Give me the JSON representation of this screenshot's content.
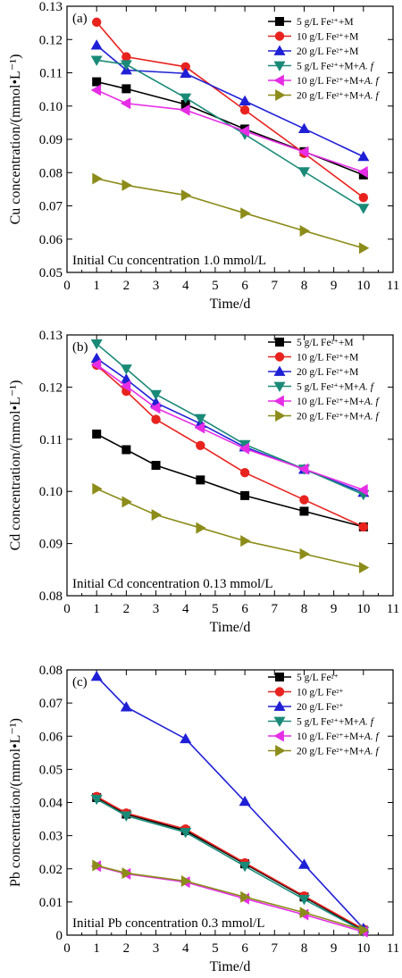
{
  "colors": {
    "black": "#000000",
    "red": "#e8231e",
    "blue": "#1f1fd6",
    "teal": "#1a8a78",
    "magenta": "#e62de6",
    "olive": "#8c8c1a"
  },
  "chart_data": [
    {
      "type": "line",
      "panel": "(a)",
      "xlabel": "Time/d",
      "ylabel": "Cu concentration/(mmol•L⁻¹)",
      "annotation": "Initial Cu concentration 1.0 mmol/L",
      "xlim": [
        0,
        11
      ],
      "ylim": [
        0.05,
        0.13
      ],
      "xticks": [
        0,
        1,
        2,
        3,
        4,
        5,
        6,
        7,
        8,
        9,
        10,
        11
      ],
      "yticks": [
        0.05,
        0.06,
        0.07,
        0.08,
        0.09,
        0.1,
        0.11,
        0.12,
        0.13
      ],
      "ytick_labels": [
        "0.05",
        "0.06",
        "0.07",
        "0.08",
        "0.09",
        "0.10",
        "0.11",
        "0.12",
        "0.13"
      ],
      "legend": "top-right",
      "series": [
        {
          "name": "5 g/L Fe²⁺+M",
          "color": "black",
          "marker": "square",
          "x": [
            1,
            2,
            4,
            6,
            8,
            10
          ],
          "values": [
            0.1073,
            0.1052,
            0.1005,
            0.0931,
            0.0863,
            0.0793
          ]
        },
        {
          "name": "10 g/L Fe²⁺+M",
          "color": "red",
          "marker": "circle",
          "x": [
            1,
            2,
            4,
            6,
            8,
            10
          ],
          "values": [
            0.1252,
            0.1148,
            0.1118,
            0.0988,
            0.0858,
            0.0725
          ]
        },
        {
          "name": "20 g/L Fe²⁺+M",
          "color": "blue",
          "marker": "triangle-up",
          "x": [
            1,
            2,
            4,
            6,
            8,
            10
          ],
          "values": [
            0.1183,
            0.1108,
            0.1098,
            0.1015,
            0.0932,
            0.0848
          ]
        },
        {
          "name": "5 g/L Fe²⁺+M+A. f",
          "color": "teal",
          "marker": "triangle-down",
          "x": [
            1,
            2,
            4,
            6,
            8,
            10
          ],
          "values": [
            0.1138,
            0.1125,
            0.1025,
            0.0915,
            0.0803,
            0.0693
          ]
        },
        {
          "name": "10 g/L Fe²⁺+M+A. f",
          "color": "magenta",
          "marker": "triangle-left",
          "x": [
            1,
            2,
            4,
            6,
            8,
            10
          ],
          "values": [
            0.1048,
            0.1008,
            0.0988,
            0.0925,
            0.0862,
            0.0802
          ]
        },
        {
          "name": "20 g/L Fe²⁺+M+A. f",
          "color": "olive",
          "marker": "triangle-right",
          "x": [
            1,
            2,
            4,
            6,
            8,
            10
          ],
          "values": [
            0.0782,
            0.0762,
            0.0732,
            0.0678,
            0.0625,
            0.0573
          ]
        }
      ]
    },
    {
      "type": "line",
      "panel": "(b)",
      "xlabel": "Time/d",
      "ylabel": "Cd concentration/(mmol•L⁻¹)",
      "annotation": "Initial Cd concentration 0.13 mmol/L",
      "xlim": [
        0,
        11
      ],
      "ylim": [
        0.08,
        0.13
      ],
      "xticks": [
        0,
        1,
        2,
        3,
        4,
        5,
        6,
        7,
        8,
        9,
        10,
        11
      ],
      "yticks": [
        0.08,
        0.09,
        0.1,
        0.11,
        0.12,
        0.13
      ],
      "ytick_labels": [
        "0.08",
        "0.09",
        "0.10",
        "0.11",
        "0.12",
        "0.13"
      ],
      "legend": "top-right",
      "series": [
        {
          "name": "5 g/L Fe²⁺+M",
          "color": "black",
          "marker": "square",
          "x": [
            1,
            2,
            3,
            4.5,
            6,
            8,
            10
          ],
          "values": [
            0.111,
            0.108,
            0.105,
            0.1022,
            0.0992,
            0.0962,
            0.0932
          ]
        },
        {
          "name": "10 g/L Fe²⁺+M",
          "color": "red",
          "marker": "circle",
          "x": [
            1,
            2,
            3,
            4.5,
            6,
            8,
            10
          ],
          "values": [
            0.1242,
            0.1192,
            0.1138,
            0.1088,
            0.1036,
            0.0984,
            0.0932
          ]
        },
        {
          "name": "20 g/L Fe²⁺+M",
          "color": "blue",
          "marker": "triangle-up",
          "x": [
            1,
            2,
            3,
            4.5,
            6,
            8,
            10
          ],
          "values": [
            0.1255,
            0.1215,
            0.117,
            0.113,
            0.1085,
            0.1042,
            0.0998
          ]
        },
        {
          "name": "5 g/L Fe²⁺+M+A. f",
          "color": "teal",
          "marker": "triangle-down",
          "x": [
            1,
            2,
            3,
            4.5,
            6,
            8,
            10
          ],
          "values": [
            0.1283,
            0.1235,
            0.1186,
            0.114,
            0.109,
            0.1043,
            0.0994
          ]
        },
        {
          "name": "10 g/L Fe²⁺+M+A. f",
          "color": "magenta",
          "marker": "triangle-left",
          "x": [
            1,
            2,
            3,
            4.5,
            6,
            8,
            10
          ],
          "values": [
            0.1243,
            0.1202,
            0.116,
            0.1122,
            0.1082,
            0.1043,
            0.1003
          ]
        },
        {
          "name": "20 g/L Fe²⁺+M+A. f",
          "color": "olive",
          "marker": "triangle-right",
          "x": [
            1,
            2,
            3,
            4.5,
            6,
            8,
            10
          ],
          "values": [
            0.1005,
            0.098,
            0.0955,
            0.093,
            0.0905,
            0.088,
            0.0854
          ]
        }
      ]
    },
    {
      "type": "line",
      "panel": "(c)",
      "xlabel": "Time/d",
      "ylabel": "Pb concentration/(mmol•L⁻¹)",
      "annotation": "Initial Pb concentration 0.3 mmol/L",
      "xlim": [
        0,
        11
      ],
      "ylim": [
        0,
        0.08
      ],
      "xticks": [
        0,
        1,
        2,
        3,
        4,
        5,
        6,
        7,
        8,
        9,
        10,
        11
      ],
      "yticks": [
        0,
        0.01,
        0.02,
        0.03,
        0.04,
        0.05,
        0.06,
        0.07,
        0.08
      ],
      "ytick_labels": [
        "0",
        "0.01",
        "0.02",
        "0.03",
        "0.04",
        "0.05",
        "0.06",
        "0.07",
        "0.08"
      ],
      "legend": "top-right",
      "series": [
        {
          "name": "5 g/L Fe²⁺",
          "color": "black",
          "marker": "square",
          "x": [
            1,
            2,
            4,
            6,
            8,
            10
          ],
          "values": [
            0.0415,
            0.0365,
            0.0315,
            0.0215,
            0.0115,
            0.0015
          ]
        },
        {
          "name": "10 g/L Fe²⁺",
          "color": "red",
          "marker": "circle",
          "x": [
            1,
            2,
            4,
            6,
            8,
            10
          ],
          "values": [
            0.0418,
            0.0368,
            0.032,
            0.0218,
            0.0118,
            0.0018
          ]
        },
        {
          "name": "20 g/L Fe²⁺",
          "color": "blue",
          "marker": "triangle-up",
          "x": [
            1,
            2,
            4,
            6,
            8,
            10
          ],
          "values": [
            0.078,
            0.0688,
            0.0592,
            0.0403,
            0.0213,
            0.002
          ]
        },
        {
          "name": "5 g/L Fe²⁺+M+A. f",
          "color": "teal",
          "marker": "triangle-down",
          "x": [
            1,
            2,
            4,
            6,
            8,
            10
          ],
          "values": [
            0.041,
            0.036,
            0.031,
            0.0208,
            0.0108,
            0.0012
          ]
        },
        {
          "name": "10 g/L Fe²⁺+M+A. f",
          "color": "magenta",
          "marker": "triangle-left",
          "x": [
            1,
            2,
            4,
            6,
            8,
            10
          ],
          "values": [
            0.0208,
            0.0185,
            0.016,
            0.011,
            0.0062,
            0.001
          ]
        },
        {
          "name": "20 g/L Fe²⁺+M+A. f",
          "color": "olive",
          "marker": "triangle-right",
          "x": [
            1,
            2,
            4,
            6,
            8,
            10
          ],
          "values": [
            0.021,
            0.0187,
            0.0163,
            0.0115,
            0.0068,
            0.0015
          ]
        }
      ]
    }
  ]
}
